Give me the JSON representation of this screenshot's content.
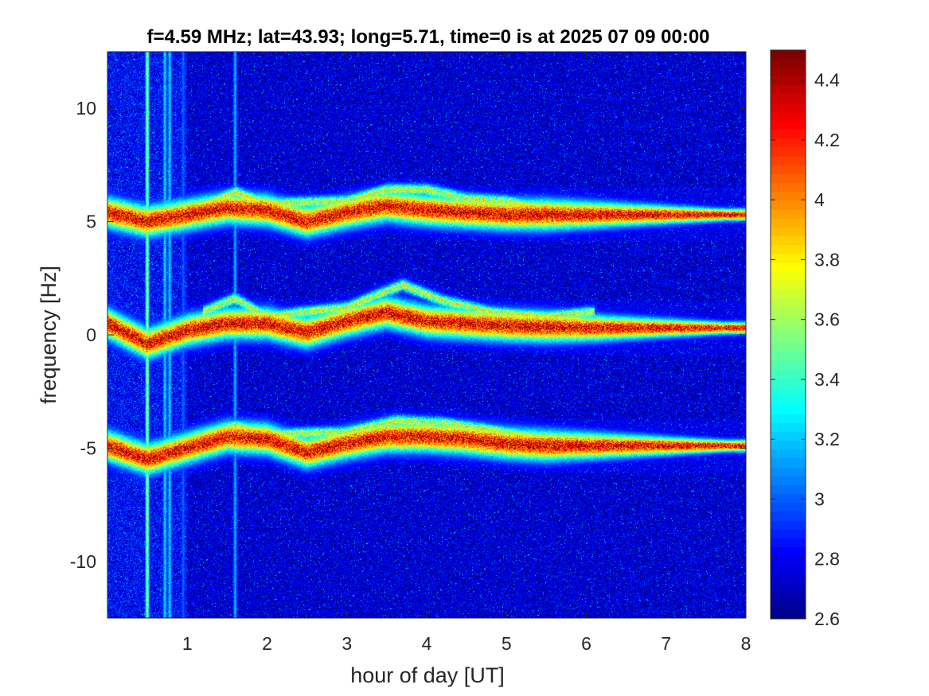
{
  "chart_data": {
    "type": "heatmap",
    "title": "f=4.59 MHz;  lat=43.93; long=5.71, time=0 is at 2025 07 09 00:00",
    "xlabel": "hour of day [UT]",
    "ylabel": "frequency [Hz]",
    "xlim": [
      0,
      8
    ],
    "ylim": [
      -12.5,
      12.5
    ],
    "xticks": [
      1,
      2,
      3,
      4,
      5,
      6,
      7,
      8
    ],
    "yticks": [
      10,
      5,
      0,
      -5,
      -10
    ],
    "colorbar": {
      "range": [
        2.6,
        4.5
      ],
      "ticks": [
        4.4,
        4.2,
        4,
        3.8,
        3.6,
        3.4,
        3.2,
        3,
        2.8,
        2.6
      ],
      "colormap": "jet",
      "placement": "right"
    },
    "grid": false,
    "background_level": 2.75,
    "traces": [
      {
        "name": "upper",
        "peak": 4.45,
        "points": [
          [
            0.0,
            5.4
          ],
          [
            0.5,
            5.0
          ],
          [
            1.0,
            5.3
          ],
          [
            1.5,
            5.6
          ],
          [
            2.0,
            5.5
          ],
          [
            2.5,
            5.0
          ],
          [
            3.0,
            5.4
          ],
          [
            3.5,
            5.7
          ],
          [
            4.0,
            5.5
          ],
          [
            4.5,
            5.4
          ],
          [
            5.0,
            5.3
          ],
          [
            5.5,
            5.3
          ],
          [
            6.0,
            5.3
          ],
          [
            7.0,
            5.3
          ],
          [
            7.9,
            5.3
          ]
        ]
      },
      {
        "name": "center",
        "peak": 4.45,
        "points": [
          [
            0.0,
            0.5
          ],
          [
            0.5,
            -0.4
          ],
          [
            1.0,
            0.2
          ],
          [
            1.5,
            0.5
          ],
          [
            2.0,
            0.5
          ],
          [
            2.5,
            0.1
          ],
          [
            3.0,
            0.6
          ],
          [
            3.5,
            1.0
          ],
          [
            4.0,
            0.6
          ],
          [
            4.5,
            0.5
          ],
          [
            5.0,
            0.4
          ],
          [
            6.0,
            0.3
          ],
          [
            7.0,
            0.3
          ],
          [
            7.9,
            0.3
          ]
        ]
      },
      {
        "name": "lower",
        "peak": 4.45,
        "points": [
          [
            0.0,
            -4.9
          ],
          [
            0.5,
            -5.5
          ],
          [
            1.0,
            -5.0
          ],
          [
            1.5,
            -4.5
          ],
          [
            2.0,
            -4.6
          ],
          [
            2.5,
            -5.2
          ],
          [
            3.0,
            -4.8
          ],
          [
            3.5,
            -4.5
          ],
          [
            4.0,
            -4.5
          ],
          [
            4.5,
            -4.6
          ],
          [
            5.0,
            -4.8
          ],
          [
            5.5,
            -4.9
          ],
          [
            6.0,
            -4.9
          ],
          [
            7.0,
            -4.9
          ],
          [
            7.9,
            -4.9
          ]
        ]
      }
    ],
    "upper_branches": [
      {
        "name": "upper-branch",
        "peak": 3.9,
        "points": [
          [
            1.2,
            5.7
          ],
          [
            1.6,
            6.3
          ],
          [
            2.0,
            5.8
          ],
          [
            3.0,
            5.9
          ],
          [
            3.5,
            6.4
          ],
          [
            4.0,
            6.4
          ],
          [
            4.5,
            6.0
          ],
          [
            5.0,
            5.9
          ],
          [
            5.4,
            5.6
          ]
        ]
      },
      {
        "name": "center-branch",
        "peak": 3.9,
        "points": [
          [
            1.2,
            1.0
          ],
          [
            1.6,
            1.6
          ],
          [
            2.0,
            0.8
          ],
          [
            3.0,
            1.2
          ],
          [
            3.7,
            2.2
          ],
          [
            4.2,
            1.5
          ],
          [
            4.8,
            1.0
          ],
          [
            5.5,
            0.8
          ],
          [
            6.1,
            1.0
          ]
        ]
      },
      {
        "name": "lower-branch",
        "peak": 3.9,
        "points": [
          [
            1.2,
            -4.6
          ],
          [
            1.6,
            -4.0
          ],
          [
            2.0,
            -4.4
          ],
          [
            3.0,
            -4.3
          ],
          [
            3.6,
            -3.8
          ],
          [
            4.2,
            -3.9
          ],
          [
            4.8,
            -4.2
          ],
          [
            5.3,
            -4.5
          ]
        ]
      }
    ],
    "vertical_bands": [
      {
        "x": 0.5,
        "level": 3.9
      },
      {
        "x": 0.72,
        "level": 3.4
      },
      {
        "x": 0.78,
        "level": 3.4
      },
      {
        "x": 0.95,
        "level": 3.1
      },
      {
        "x": 1.6,
        "level": 3.3
      }
    ]
  }
}
